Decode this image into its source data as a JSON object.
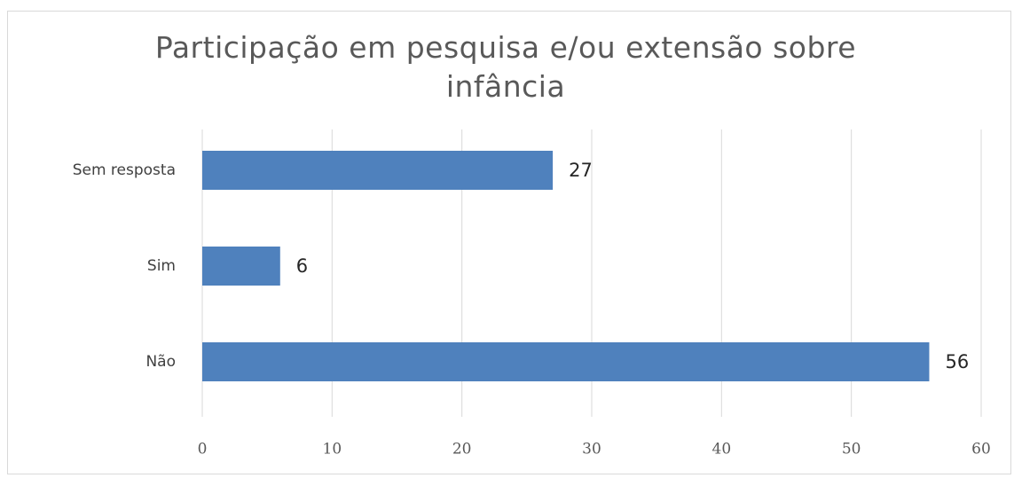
{
  "chart_data": {
    "type": "hbar",
    "title": "Participação em pesquisa e/ou extensão sobre infância",
    "categories": [
      "Sem resposta",
      "Sim",
      "Não"
    ],
    "values": [
      27,
      6,
      56
    ],
    "color": "#4f81bd",
    "xlim": [
      0,
      60
    ],
    "xticks": [
      0,
      10,
      20,
      30,
      40,
      50,
      60
    ],
    "grid": true
  }
}
